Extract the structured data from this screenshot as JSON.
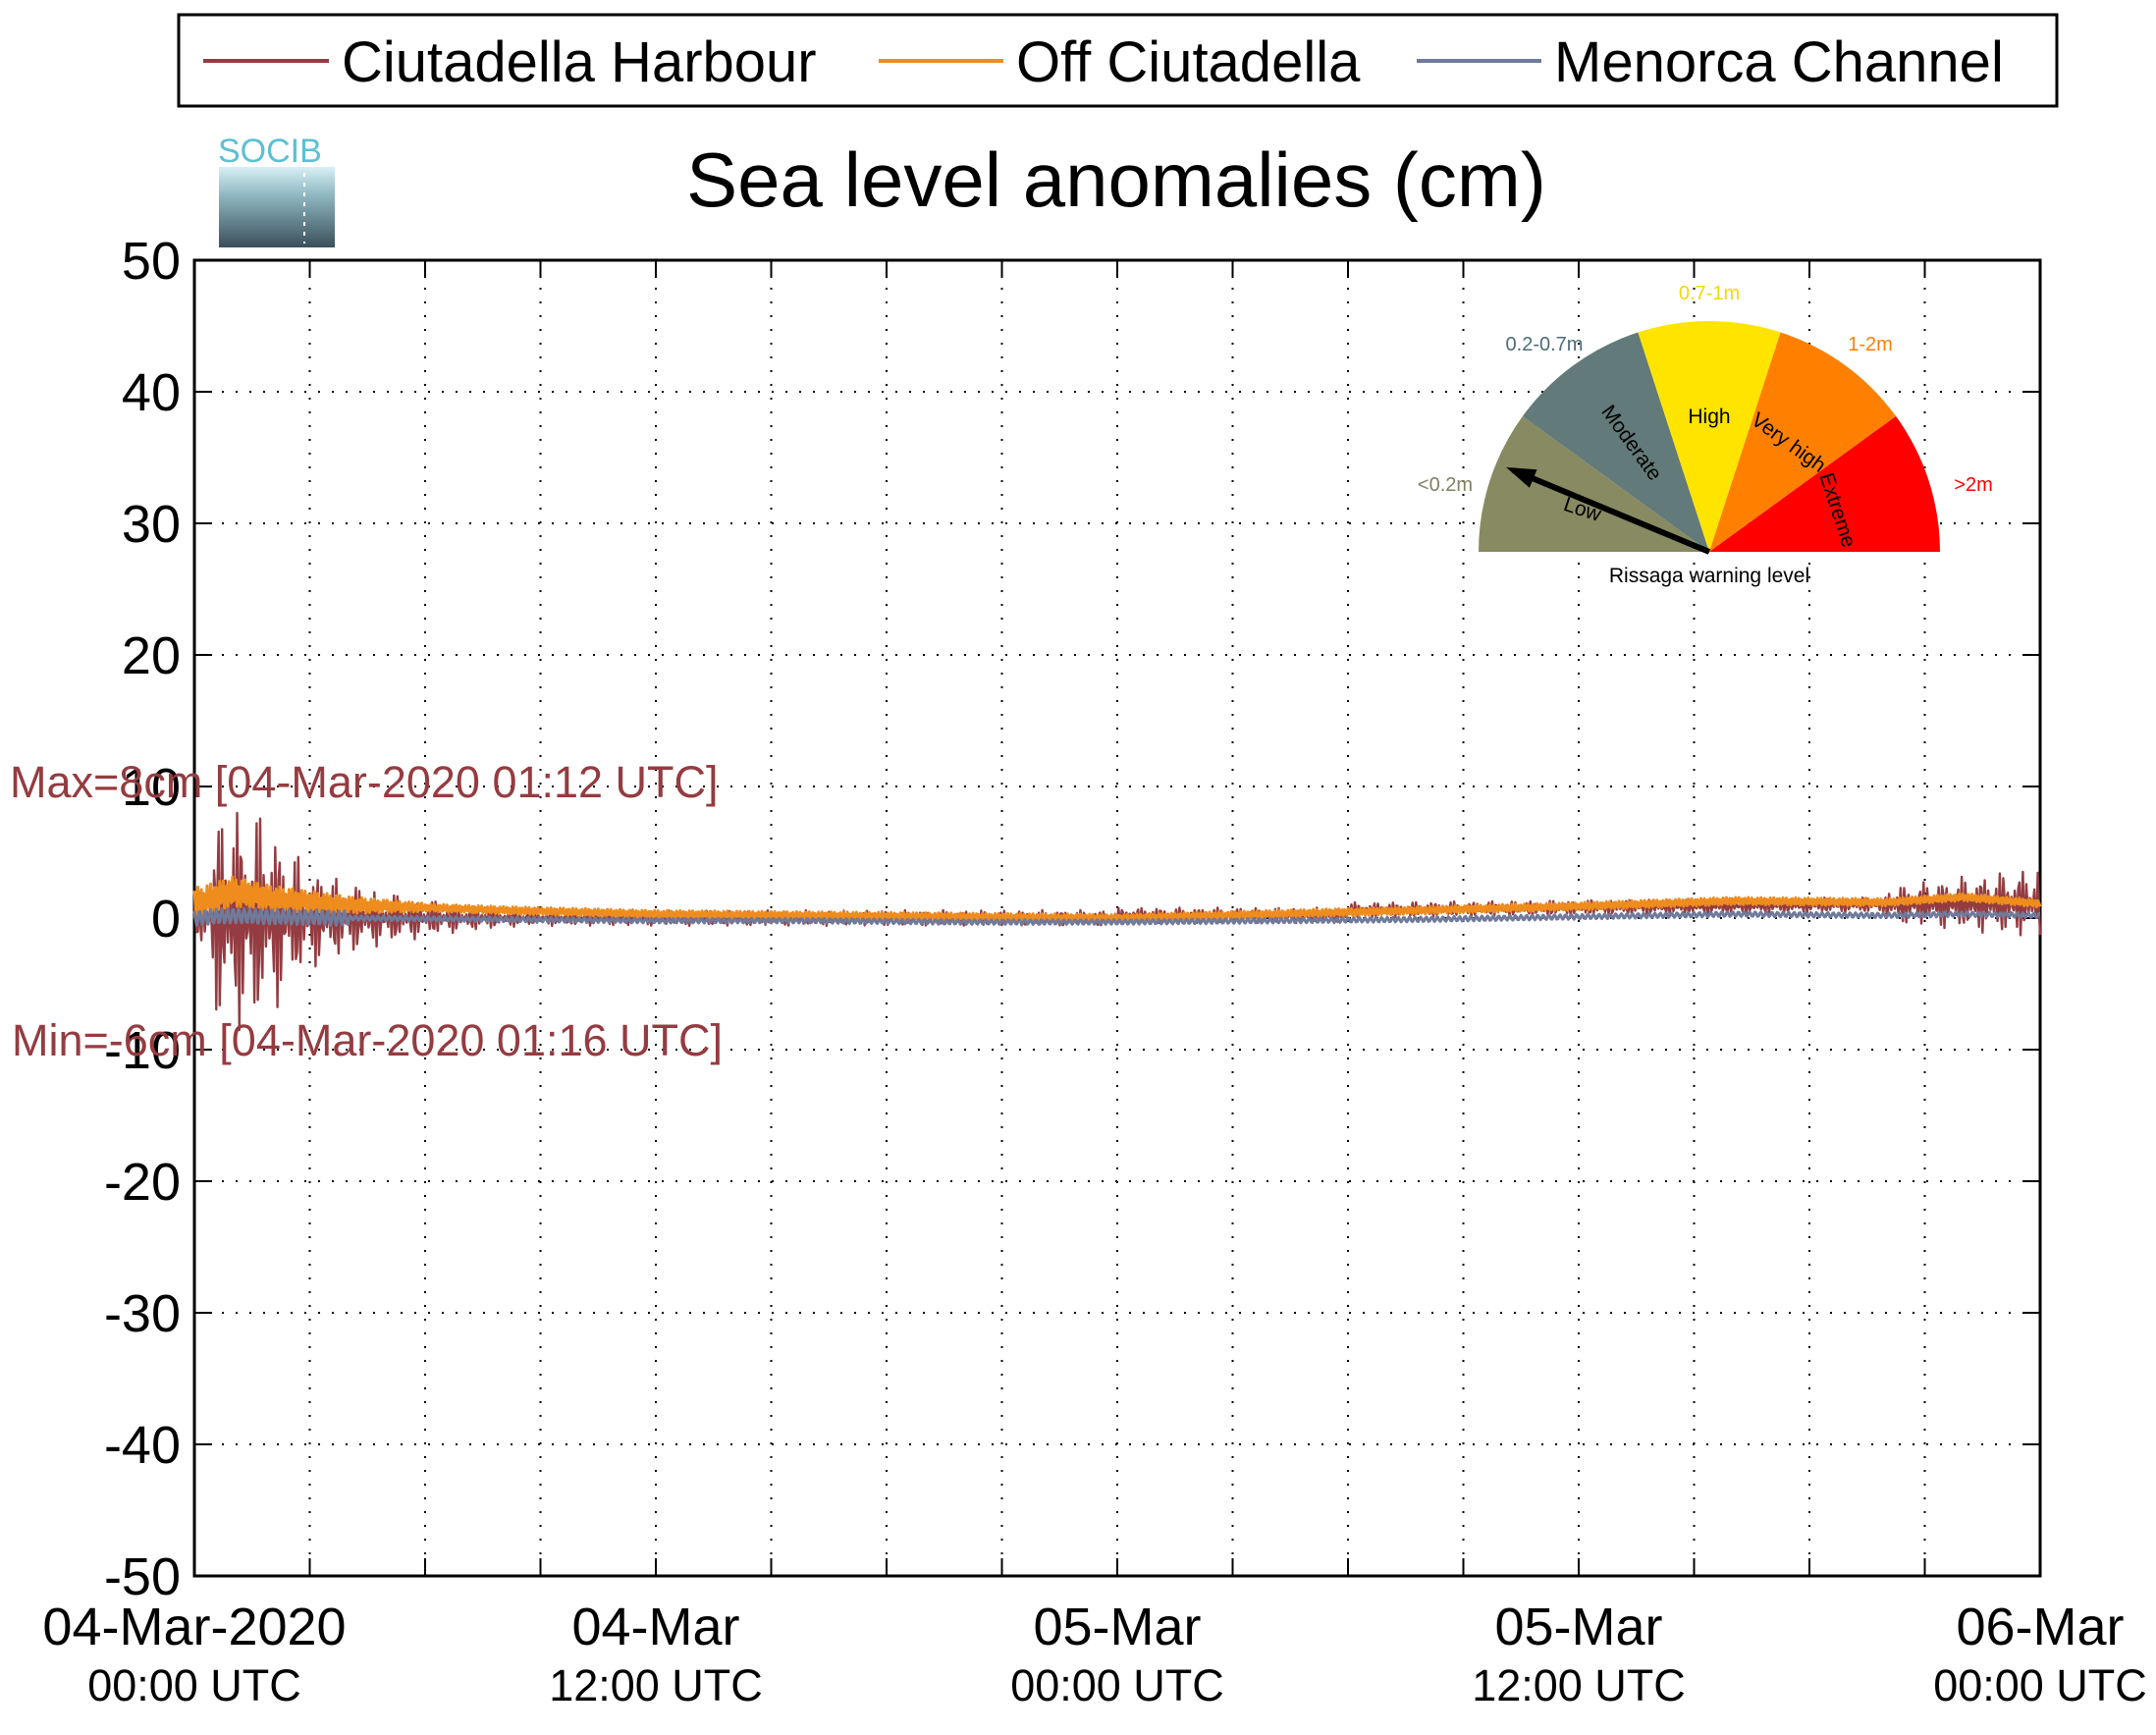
{
  "chart_data": {
    "type": "line",
    "title": "Sea level anomalies (cm)",
    "xlabel": "",
    "ylabel": "",
    "ylim": [
      -50,
      50
    ],
    "yticks": [
      "50",
      "40",
      "30",
      "20",
      "10",
      "0",
      "-10",
      "-20",
      "-30",
      "-40",
      "-50"
    ],
    "xlim": [
      "2020-03-04 00:00",
      "2020-03-06 00:00"
    ],
    "xticks": [
      {
        "main": "04-Mar-2020",
        "sub": "00:00 UTC"
      },
      {
        "main": "04-Mar",
        "sub": "12:00 UTC"
      },
      {
        "main": "05-Mar",
        "sub": "00:00 UTC"
      },
      {
        "main": "05-Mar",
        "sub": "12:00 UTC"
      },
      {
        "main": "06-Mar",
        "sub": "00:00 UTC"
      }
    ],
    "grid": true,
    "legend_position": "top",
    "series": [
      {
        "name": "Ciutadella Harbour",
        "color": "#943c41",
        "x_hours": [
          0,
          0.5,
          1.0,
          1.2,
          1.27,
          1.5,
          2.0,
          3.0,
          4.0,
          5.0,
          6.0,
          7.0,
          8.0,
          10.0,
          12.0,
          16.0,
          20.0,
          24.0,
          28.0,
          32.0,
          36.0,
          40.0,
          42.0,
          44.0,
          46.0,
          47.0,
          48.0
        ],
        "values": [
          0,
          4,
          7,
          8,
          -6,
          6,
          -5,
          4,
          -3,
          3,
          -2,
          2,
          -1.5,
          1,
          0.5,
          0.3,
          0,
          -0.2,
          0.3,
          0.6,
          0.9,
          1.1,
          1.0,
          0.9,
          1.5,
          2.5,
          0.5
        ]
      },
      {
        "name": "Off Ciutadella",
        "color": "#ee8c1e",
        "x_hours": [
          0,
          1,
          2,
          4,
          8,
          12,
          16,
          20,
          24,
          28,
          32,
          36,
          40,
          44,
          46,
          48
        ],
        "values": [
          1,
          2,
          1.5,
          1,
          0.6,
          0.3,
          0.2,
          0.1,
          0,
          0.3,
          0.6,
          0.9,
          1.3,
          1.2,
          1.6,
          1.1
        ]
      },
      {
        "name": "Menorca Channel",
        "color": "#707a9a",
        "x_hours": [
          0,
          1,
          2,
          4,
          8,
          12,
          16,
          20,
          24,
          28,
          32,
          36,
          40,
          44,
          46,
          48
        ],
        "values": [
          0.3,
          0.5,
          0.4,
          0.3,
          0.2,
          0.1,
          0.1,
          0,
          0,
          0.1,
          0.2,
          0.4,
          0.6,
          0.5,
          0.6,
          0.5
        ]
      }
    ],
    "annotations": [
      {
        "text": "Max=8cm [04-Mar-2020 01:12 UTC]",
        "value": 8,
        "color": "#943c41"
      },
      {
        "text": "Min=-6cm [04-Mar-2020 01:16 UTC]",
        "value": -6,
        "color": "#943c41"
      }
    ]
  },
  "gauge": {
    "caption": "Rissaga warning level",
    "needle_level": "Low",
    "segments": [
      {
        "label": "Low",
        "range": "<0.2m",
        "color": "#888a62",
        "range_color": "#7f8160"
      },
      {
        "label": "Moderate",
        "range": "0.2-0.7m",
        "color": "#627a79",
        "range_color": "#4e6b78"
      },
      {
        "label": "High",
        "range": "0.7-1m",
        "color": "#ffe400",
        "range_color": "#f5d800"
      },
      {
        "label": "Very high",
        "range": "1-2m",
        "color": "#ff8000",
        "range_color": "#ff7f00"
      },
      {
        "label": "Extreme",
        "range": ">2m",
        "color": "#ff0000",
        "range_color": "#ff0000"
      }
    ]
  },
  "logo": {
    "text": "SOCIB"
  }
}
